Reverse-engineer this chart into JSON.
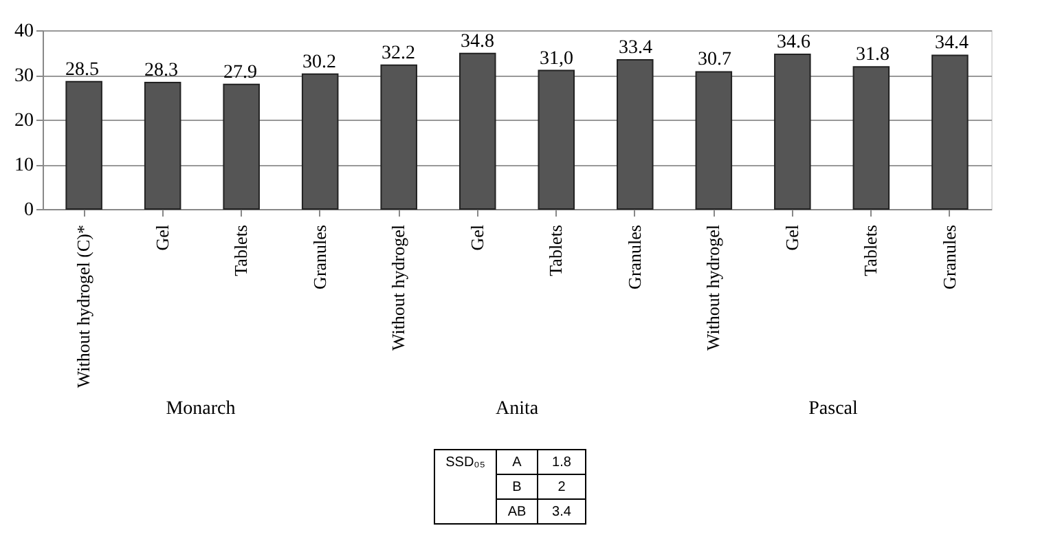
{
  "chart_data": {
    "type": "bar",
    "categories": [
      "Without hydrogel (C)*",
      "Gel",
      "Tablets",
      "Granules",
      "Without hydrogel",
      "Gel",
      "Tablets",
      "Granules",
      "Without hydrogel",
      "Gel",
      "Tablets",
      "Granules"
    ],
    "values": [
      28.5,
      28.3,
      27.9,
      30.2,
      32.2,
      34.8,
      31.0,
      33.4,
      30.7,
      34.6,
      31.8,
      34.4
    ],
    "value_labels": [
      "28.5",
      "28.3",
      "27.9",
      "30.2",
      "32.2",
      "34.8",
      "31,0",
      "33.4",
      "30.7",
      "34.6",
      "31.8",
      "34.4"
    ],
    "color": "#555555",
    "ylim": [
      0,
      40
    ],
    "yticks": [
      0,
      10,
      20,
      30,
      40
    ],
    "grid": "y",
    "annotations": [
      "Monarch",
      "Anita",
      "Pascal",
      "SSD₀₅",
      "A",
      "1.8",
      "B",
      "2",
      "AB",
      "3.4"
    ]
  }
}
